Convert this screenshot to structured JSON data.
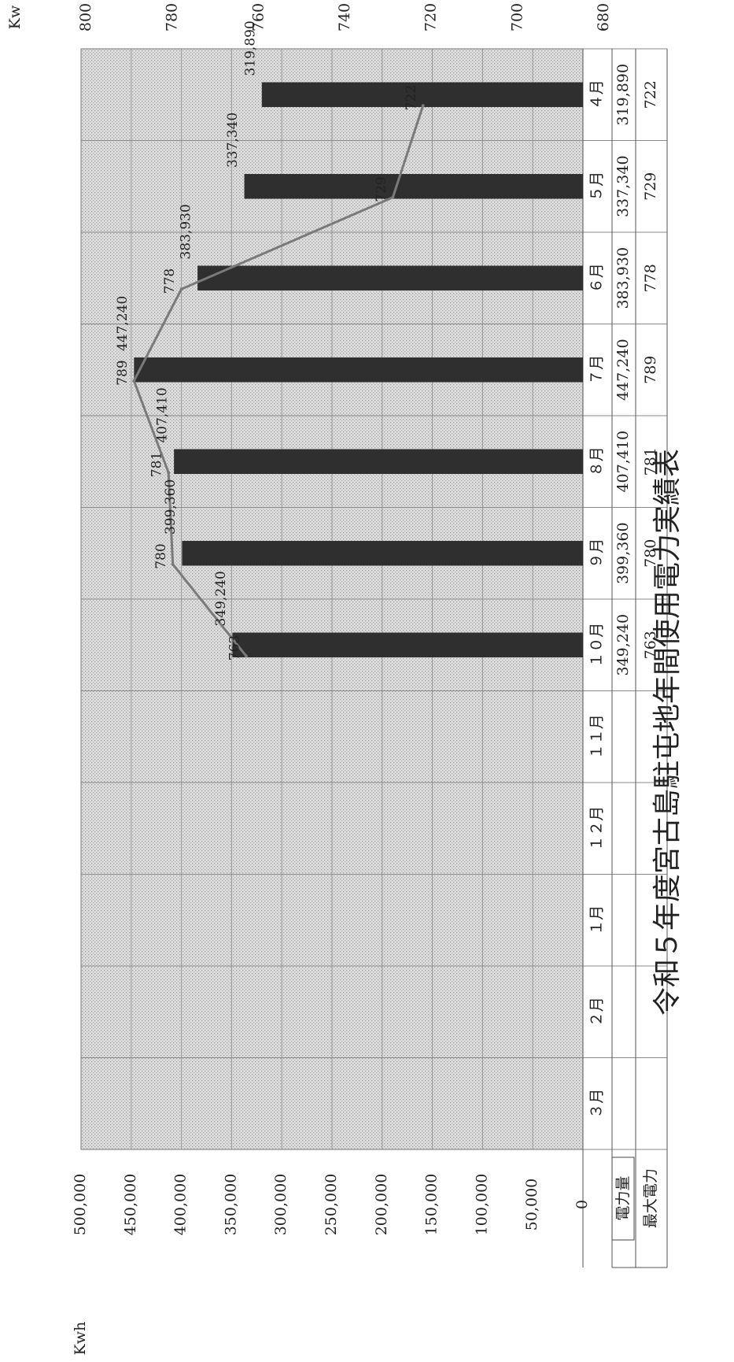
{
  "chart_data": {
    "type": "bar",
    "title": "令和５年度宮古島駐屯地年間使用電力実績表",
    "categories": [
      "４月",
      "５月",
      "６月",
      "７月",
      "８月",
      "９月",
      "１０月",
      "１１月",
      "１２月",
      "１月",
      "２月",
      "３月"
    ],
    "left_axis": {
      "unit": "Kwh",
      "ylim": [
        0,
        500000
      ],
      "ticks": [
        "0",
        "50,000",
        "100,000",
        "150,000",
        "200,000",
        "250,000",
        "300,000",
        "350,000",
        "400,000",
        "450,000",
        "500,000"
      ]
    },
    "right_axis": {
      "unit": "Kw",
      "ylim": [
        680,
        800
      ],
      "ticks": [
        "680",
        "700",
        "720",
        "740",
        "760",
        "780",
        "800"
      ]
    },
    "series": [
      {
        "name": "電力量",
        "kind": "bar",
        "axis": "left",
        "values": [
          319890,
          337340,
          383930,
          447240,
          407410,
          399360,
          349240,
          null,
          null,
          null,
          null,
          null
        ],
        "labels": [
          "319,890",
          "337,340",
          "383,930",
          "447,240",
          "407,410",
          "399,360",
          "349,240",
          "",
          "",
          "",
          "",
          ""
        ]
      },
      {
        "name": "最大電力",
        "kind": "line",
        "axis": "right",
        "values": [
          722,
          729,
          778,
          789,
          781,
          780,
          763,
          null,
          null,
          null,
          null,
          null
        ],
        "labels": [
          "722",
          "729",
          "778",
          "789",
          "781",
          "780",
          "763",
          "",
          "",
          "",
          "",
          ""
        ]
      }
    ],
    "grid": true,
    "colors": {
      "bar": "#2f2f2f",
      "line": "#7a7a7a",
      "plot_bg": "#d6d6d6",
      "grid": "#9a9a9a"
    }
  }
}
